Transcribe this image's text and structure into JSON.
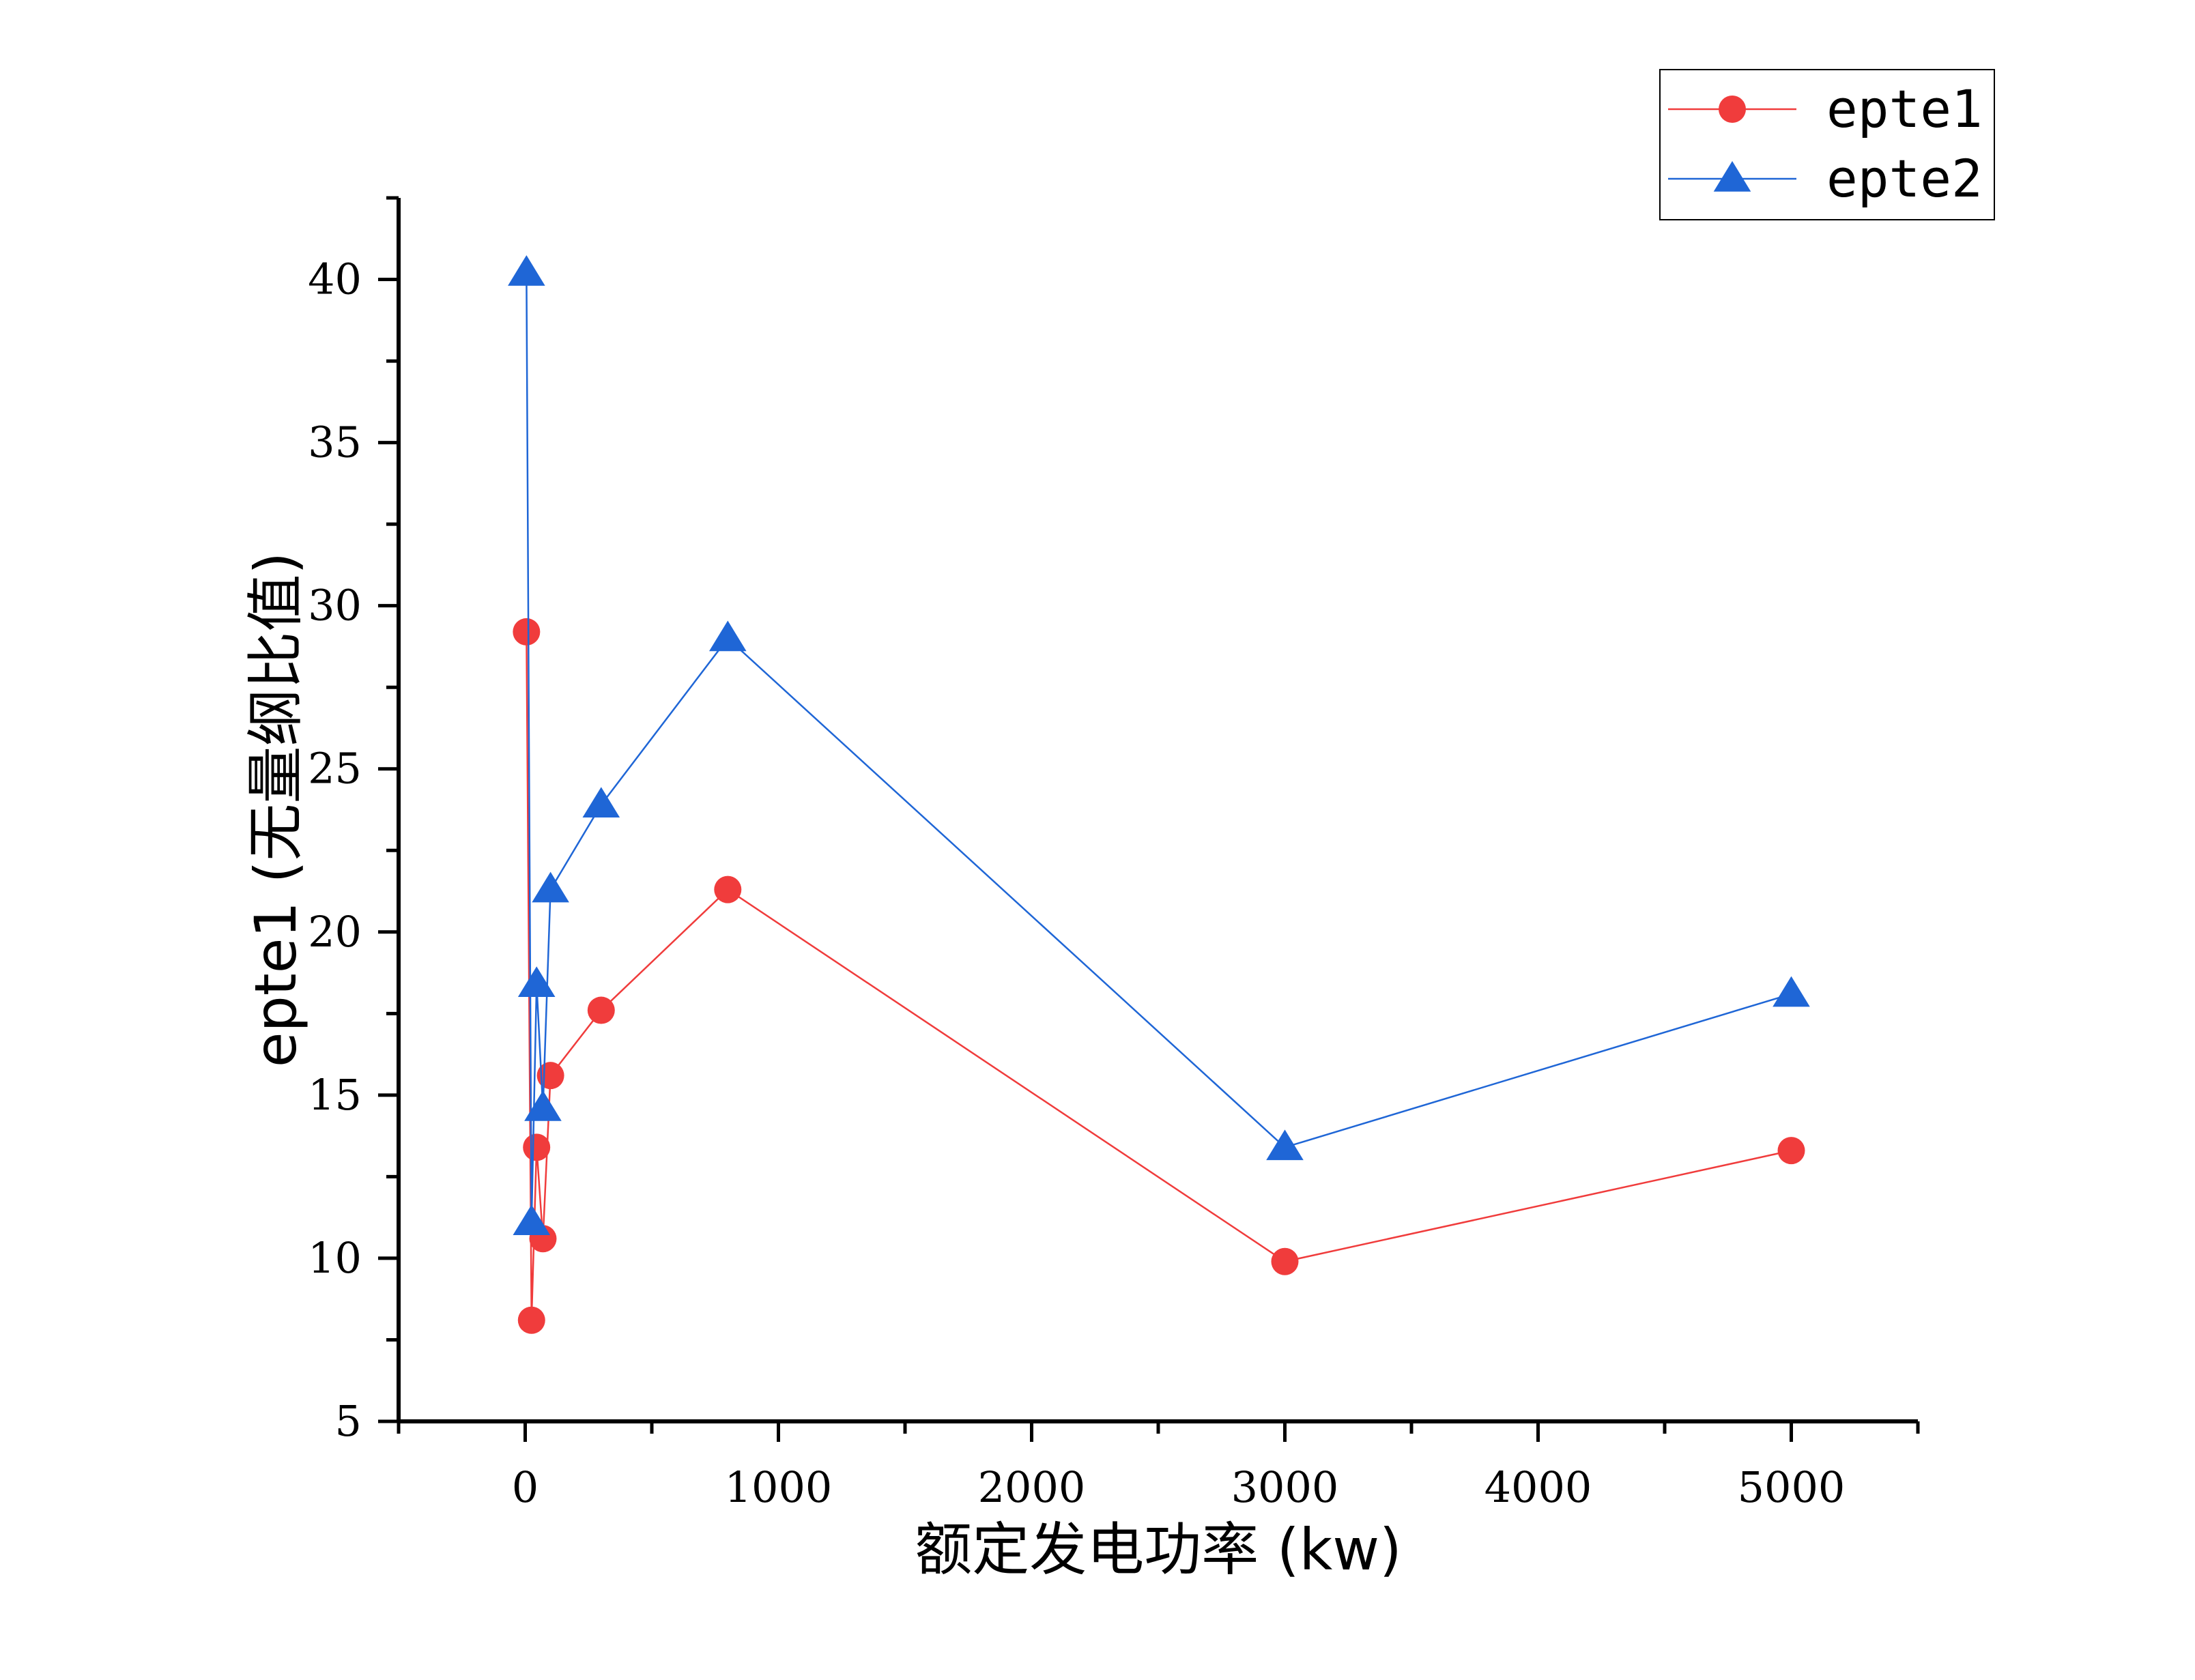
{
  "chart_data": {
    "type": "line",
    "xlabel": "额定发电功率 (kw)",
    "ylabel": "epte1 (无量纲比值)",
    "xlim": [
      -500,
      5500
    ],
    "ylim": [
      5,
      42.5
    ],
    "xticks": [
      0,
      1000,
      2000,
      3000,
      4000,
      5000
    ],
    "yticks": [
      5,
      10,
      15,
      20,
      25,
      30,
      35,
      40
    ],
    "x_minor_step": 500,
    "y_minor_step": 2.5,
    "grid": false,
    "legend_position": "top-right",
    "series": [
      {
        "name": "epte1",
        "color": "#f03c3c",
        "marker": "circle",
        "x": [
          5,
          25,
          45,
          70,
          100,
          300,
          800,
          3000,
          5000
        ],
        "y": [
          29.2,
          8.1,
          13.4,
          10.6,
          15.6,
          17.6,
          21.3,
          9.9,
          13.3
        ]
      },
      {
        "name": "epte2",
        "color": "#1f66d6",
        "marker": "triangle",
        "x": [
          5,
          25,
          45,
          70,
          100,
          300,
          800,
          3000,
          5000
        ],
        "y": [
          40.2,
          11.1,
          18.4,
          14.6,
          21.3,
          23.9,
          29.0,
          13.4,
          18.1
        ]
      }
    ]
  }
}
